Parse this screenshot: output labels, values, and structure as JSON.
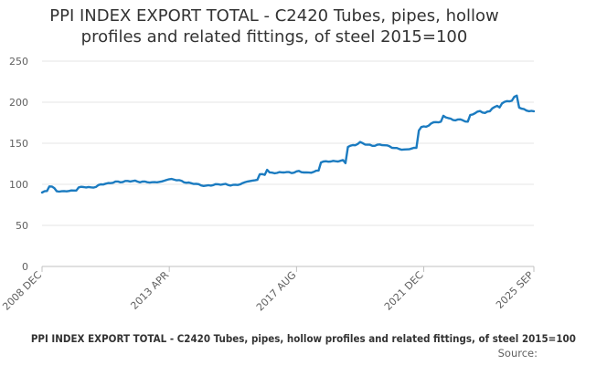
{
  "chart_data": {
    "type": "line",
    "title": "PPI INDEX EXPORT TOTAL - C2420 Tubes, pipes, hollow profiles and related fittings, of steel 2015=100",
    "title_lines": [
      "PPI INDEX EXPORT TOTAL - C2420 Tubes, pipes, hollow",
      "profiles and related fittings, of steel 2015=100"
    ],
    "xlabel": "",
    "ylabel": "",
    "ylim": [
      0,
      250
    ],
    "y_ticks": [
      0,
      50,
      100,
      150,
      200,
      250
    ],
    "y_tick_labels": [
      "0",
      "50",
      "100",
      "150",
      "200",
      "250"
    ],
    "x_tick_labels": [
      "2008 DEC",
      "2013 APR",
      "2017 AUG",
      "2021 DEC",
      "2025 SEP"
    ],
    "x_tick_month_index": [
      0,
      52,
      104,
      156,
      201
    ],
    "grid": "horizontal",
    "series": [
      {
        "name": "PPI INDEX EXPORT TOTAL - C2420",
        "color": "#1b7bc0",
        "start": "2008 DEC",
        "frequency": "monthly",
        "keyframes": [
          [
            0,
            90
          ],
          [
            2,
            92
          ],
          [
            3,
            98
          ],
          [
            4,
            97
          ],
          [
            5,
            95
          ],
          [
            6,
            92
          ],
          [
            8,
            91
          ],
          [
            10,
            92
          ],
          [
            12,
            92
          ],
          [
            14,
            93
          ],
          [
            15,
            96
          ],
          [
            17,
            97
          ],
          [
            20,
            96
          ],
          [
            22,
            97
          ],
          [
            24,
            100
          ],
          [
            27,
            101
          ],
          [
            30,
            103
          ],
          [
            33,
            103
          ],
          [
            35,
            104
          ],
          [
            38,
            104
          ],
          [
            40,
            103
          ],
          [
            43,
            103
          ],
          [
            45,
            102
          ],
          [
            47,
            103
          ],
          [
            49,
            103
          ],
          [
            51,
            106
          ],
          [
            54,
            106
          ],
          [
            57,
            104
          ],
          [
            59,
            102
          ],
          [
            62,
            101
          ],
          [
            65,
            99
          ],
          [
            67,
            98
          ],
          [
            69,
            99
          ],
          [
            72,
            100
          ],
          [
            75,
            100
          ],
          [
            77,
            99
          ],
          [
            79,
            99
          ],
          [
            82,
            101
          ],
          [
            84,
            104
          ],
          [
            86,
            104
          ],
          [
            88,
            106
          ],
          [
            89,
            112
          ],
          [
            91,
            112
          ],
          [
            92,
            118
          ],
          [
            93,
            114
          ],
          [
            96,
            114
          ],
          [
            99,
            115
          ],
          [
            102,
            114
          ],
          [
            105,
            116
          ],
          [
            108,
            114
          ],
          [
            111,
            115
          ],
          [
            113,
            117
          ],
          [
            114,
            127
          ],
          [
            117,
            128
          ],
          [
            120,
            128
          ],
          [
            123,
            129
          ],
          [
            124,
            126
          ],
          [
            125,
            146
          ],
          [
            128,
            148
          ],
          [
            130,
            151
          ],
          [
            132,
            149
          ],
          [
            135,
            147
          ],
          [
            137,
            148
          ],
          [
            140,
            148
          ],
          [
            143,
            145
          ],
          [
            146,
            143
          ],
          [
            149,
            142
          ],
          [
            151,
            144
          ],
          [
            153,
            144
          ],
          [
            154,
            166
          ],
          [
            155,
            170
          ],
          [
            157,
            170
          ],
          [
            159,
            174
          ],
          [
            161,
            176
          ],
          [
            163,
            176
          ],
          [
            164,
            183
          ],
          [
            166,
            181
          ],
          [
            168,
            178
          ],
          [
            170,
            179
          ],
          [
            172,
            178
          ],
          [
            174,
            176
          ],
          [
            175,
            184
          ],
          [
            177,
            187
          ],
          [
            179,
            189
          ],
          [
            181,
            187
          ],
          [
            183,
            189
          ],
          [
            184,
            193
          ],
          [
            186,
            195
          ],
          [
            187,
            194
          ],
          [
            188,
            199
          ],
          [
            190,
            201
          ],
          [
            192,
            202
          ],
          [
            193,
            206
          ],
          [
            194,
            208
          ],
          [
            195,
            194
          ],
          [
            196,
            192
          ],
          [
            198,
            190
          ],
          [
            200,
            189
          ],
          [
            201,
            189
          ]
        ]
      }
    ]
  },
  "footer": {
    "caption": "PPI INDEX EXPORT TOTAL - C2420 Tubes, pipes, hollow profiles and related fittings, of steel 2015=100",
    "source_label": "Source:"
  }
}
